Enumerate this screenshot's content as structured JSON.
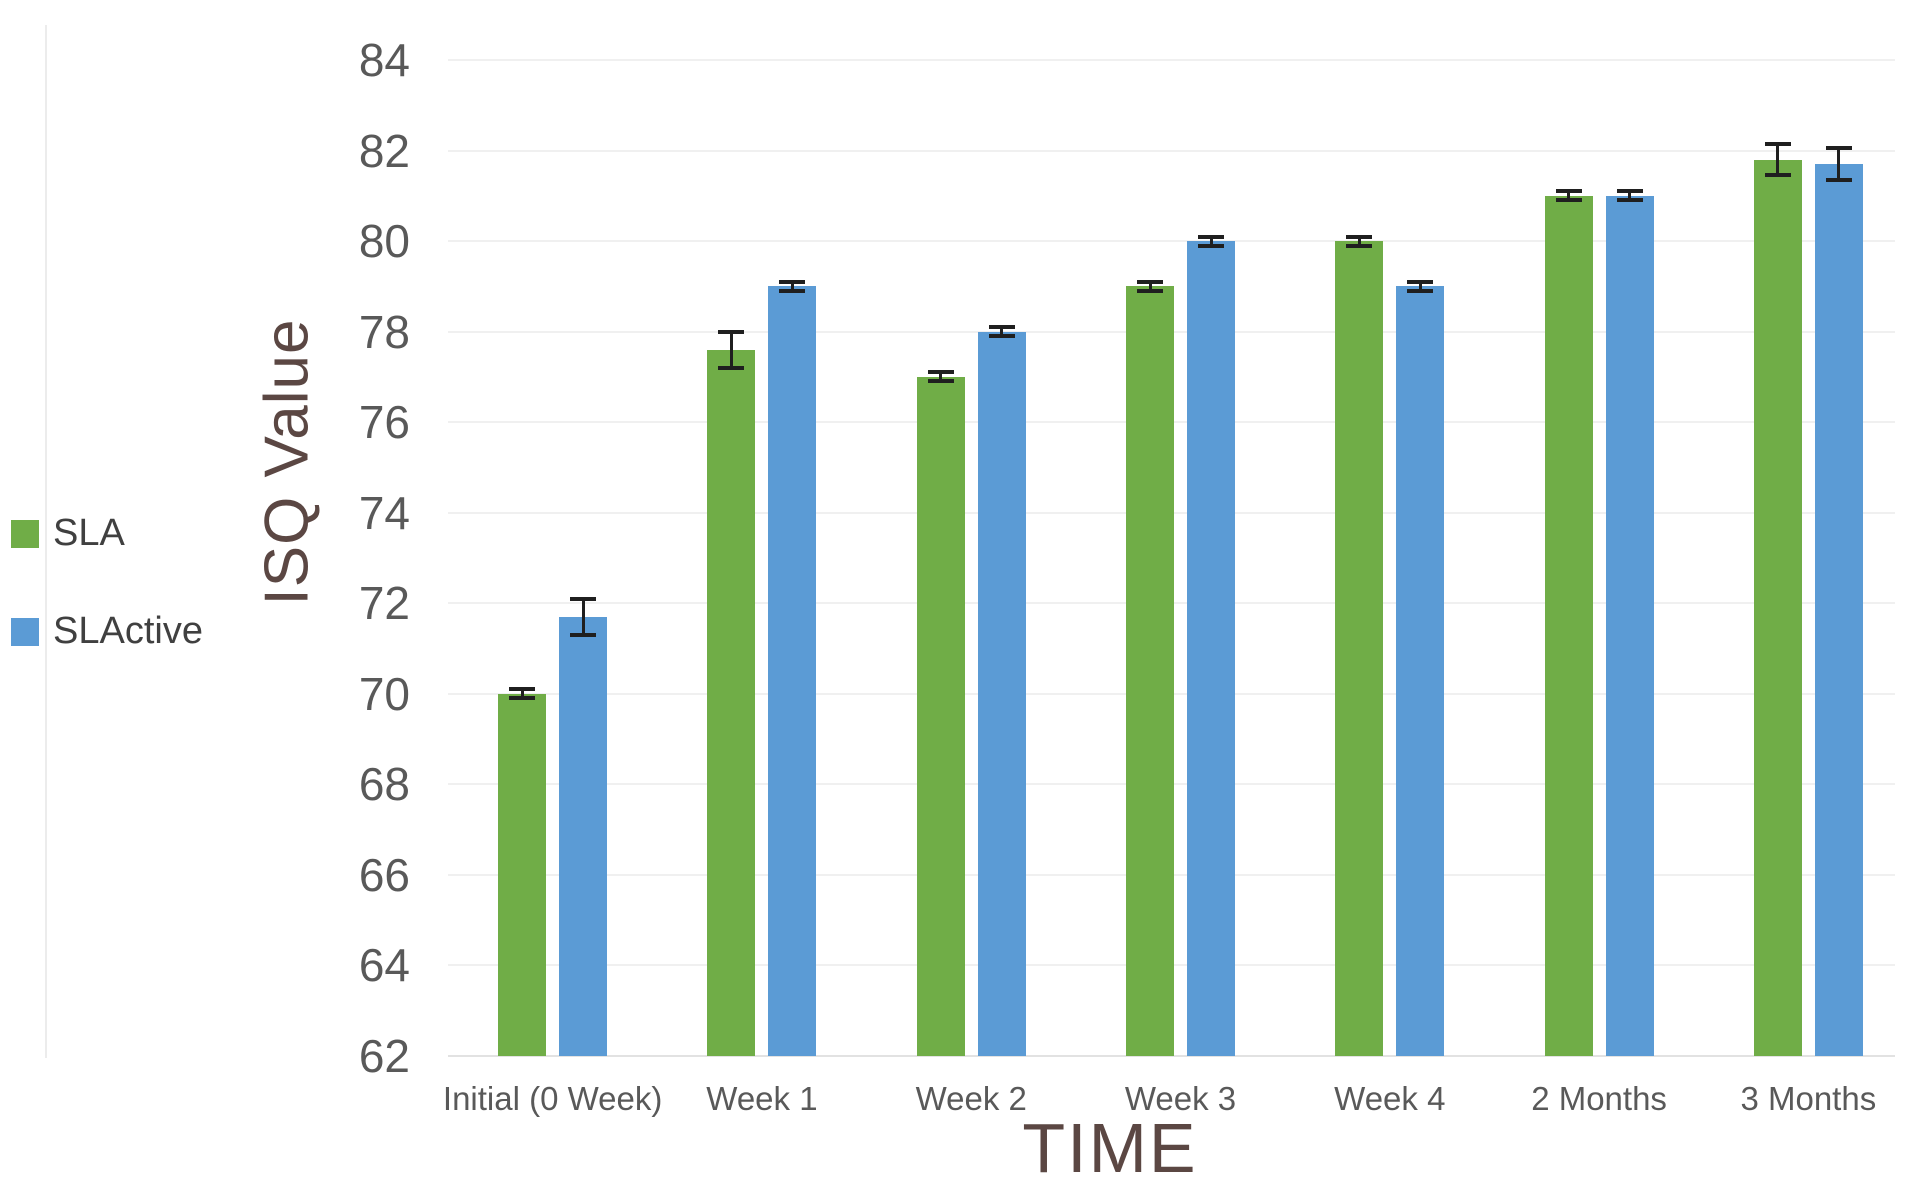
{
  "figure": {
    "background": "#ffffff"
  },
  "legend": {
    "items": [
      {
        "label": "SLA",
        "color": "#70AD47"
      },
      {
        "label": "SLActive",
        "color": "#5B9BD5"
      }
    ]
  },
  "chart_data": {
    "type": "bar",
    "title": "",
    "xlabel": "TIME",
    "ylabel": "ISQ Value",
    "categories": [
      "Initial (0 Week)",
      "Week 1",
      "Week 2",
      "Week 3",
      "Week 4",
      "2 Months",
      "3 Months"
    ],
    "series": [
      {
        "name": "SLA",
        "color": "#70AD47",
        "values": [
          70.0,
          77.6,
          77.0,
          79.0,
          80.0,
          81.0,
          81.8
        ],
        "errors": [
          0.1,
          0.4,
          0.1,
          0.1,
          0.1,
          0.1,
          0.35
        ]
      },
      {
        "name": "SLActive",
        "color": "#5B9BD5",
        "values": [
          71.7,
          79.0,
          78.0,
          80.0,
          79.0,
          81.0,
          81.7
        ],
        "errors": [
          0.4,
          0.1,
          0.1,
          0.1,
          0.1,
          0.1,
          0.35
        ]
      }
    ],
    "ylim": [
      62,
      84
    ],
    "ytick_step": 2,
    "ytick_labels": [
      "62",
      "64",
      "66",
      "68",
      "70",
      "72",
      "74",
      "76",
      "78",
      "80",
      "82",
      "84"
    ],
    "grid": true,
    "error_bars": true,
    "legend_position": "left"
  },
  "colors": {
    "axis_title": "#5b4743",
    "tick_label": "#595959",
    "legend_label": "#404040",
    "gridline": "#f0f0f0",
    "error_bar": "#1f1f1f"
  }
}
